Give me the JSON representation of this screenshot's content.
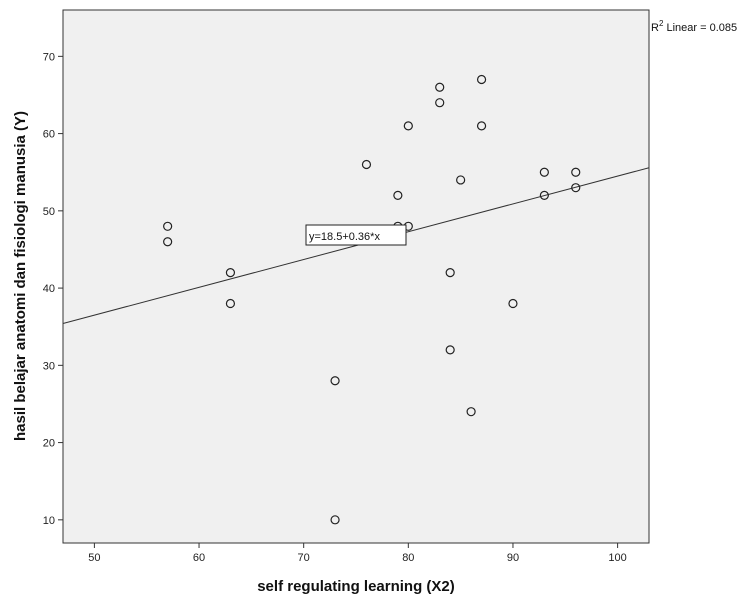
{
  "chart_data": {
    "type": "scatter",
    "xlabel": "self regulating learning (X2)",
    "ylabel": "hasil belajar anatomi dan fisiologi manusia (Y)",
    "xlim": [
      47,
      103
    ],
    "ylim": [
      7,
      76
    ],
    "x_ticks": [
      50,
      60,
      70,
      80,
      90,
      100
    ],
    "y_ticks": [
      10,
      20,
      30,
      40,
      50,
      60,
      70
    ],
    "grid": false,
    "plot_background": "#f0f0f0",
    "marker_color": "#222222",
    "line_color": "#333333",
    "points": [
      {
        "x": 57,
        "y": 48
      },
      {
        "x": 57,
        "y": 46
      },
      {
        "x": 63,
        "y": 42
      },
      {
        "x": 63,
        "y": 38
      },
      {
        "x": 73,
        "y": 28
      },
      {
        "x": 73,
        "y": 10
      },
      {
        "x": 76,
        "y": 56
      },
      {
        "x": 79,
        "y": 52
      },
      {
        "x": 79,
        "y": 48
      },
      {
        "x": 80,
        "y": 61
      },
      {
        "x": 80,
        "y": 48
      },
      {
        "x": 83,
        "y": 66
      },
      {
        "x": 83,
        "y": 64
      },
      {
        "x": 84,
        "y": 42
      },
      {
        "x": 84,
        "y": 32
      },
      {
        "x": 85,
        "y": 54
      },
      {
        "x": 86,
        "y": 24
      },
      {
        "x": 87,
        "y": 67
      },
      {
        "x": 87,
        "y": 61
      },
      {
        "x": 90,
        "y": 38
      },
      {
        "x": 93,
        "y": 55
      },
      {
        "x": 93,
        "y": 52
      },
      {
        "x": 96,
        "y": 55
      },
      {
        "x": 96,
        "y": 53
      }
    ],
    "fit_line": {
      "intercept": 18.5,
      "slope": 0.36
    },
    "fit_label": "y=18.5+0.36*x",
    "r2_label": {
      "prefix": "R",
      "sup": "2",
      "suffix": " Linear = 0.085"
    }
  }
}
